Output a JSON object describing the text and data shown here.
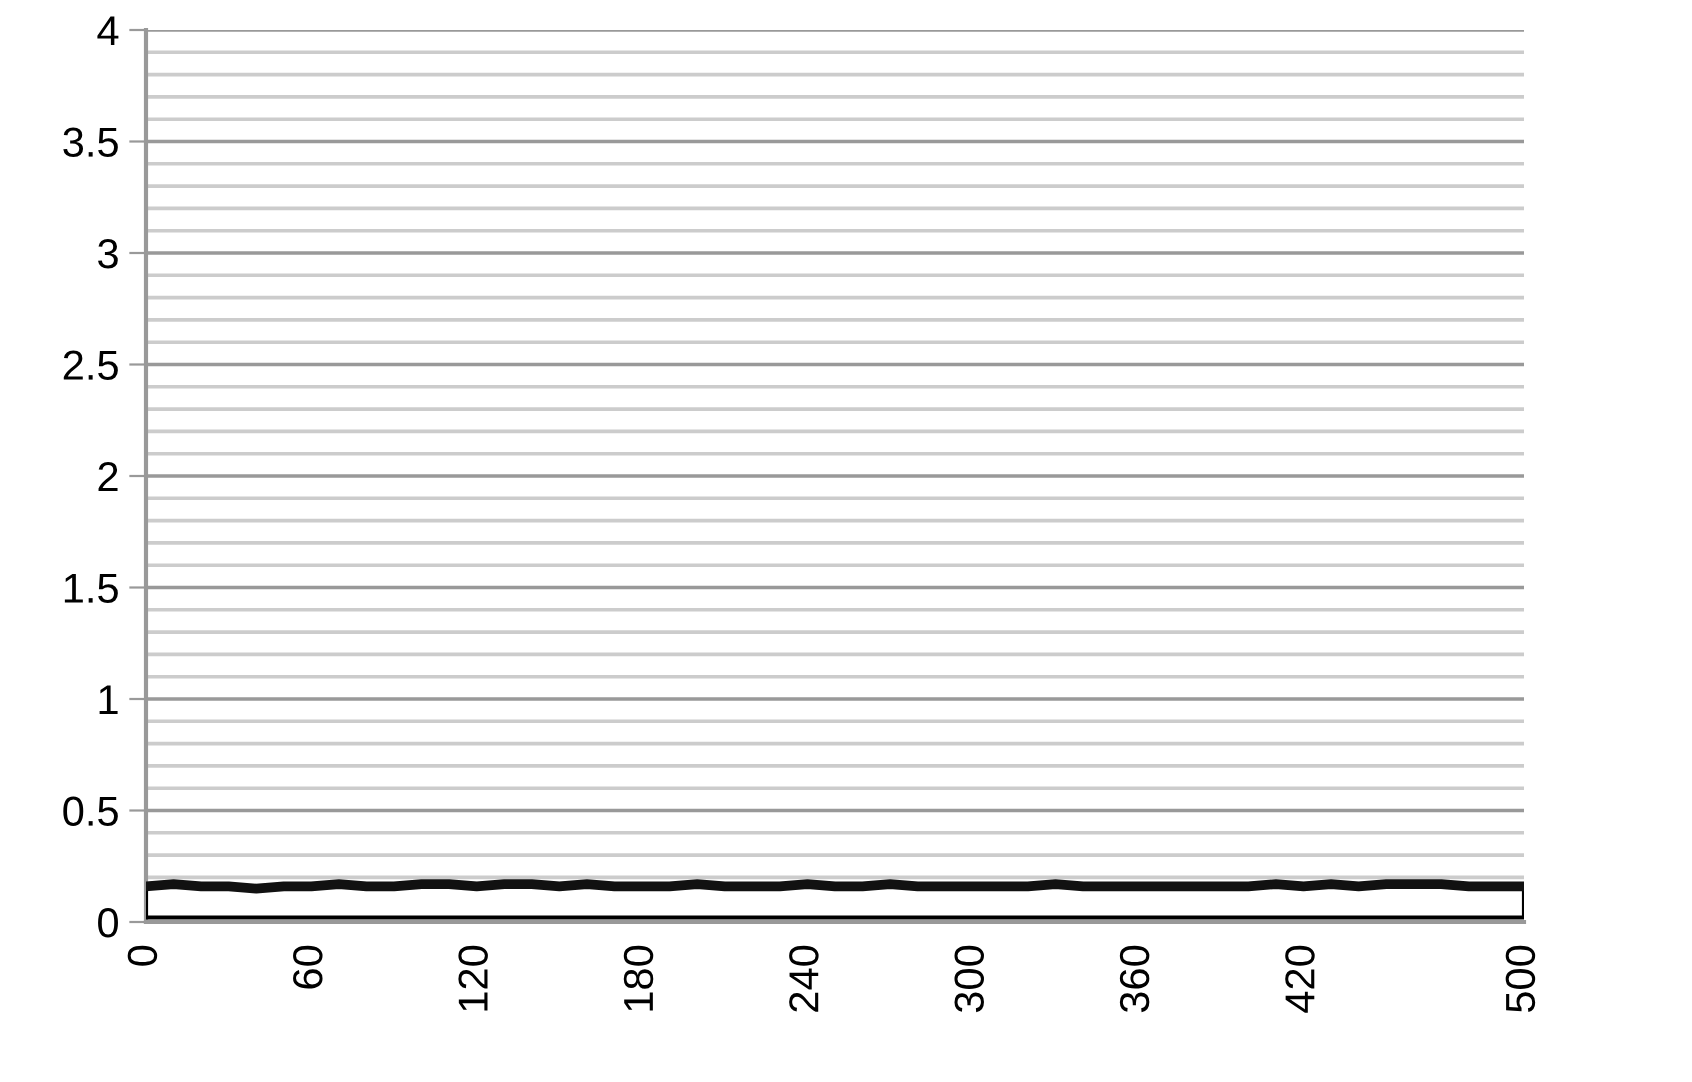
{
  "chart_data": {
    "type": "line",
    "x": [
      0,
      10,
      20,
      30,
      40,
      50,
      60,
      70,
      80,
      90,
      100,
      110,
      120,
      130,
      140,
      150,
      160,
      170,
      180,
      190,
      200,
      210,
      220,
      230,
      240,
      250,
      260,
      270,
      280,
      290,
      300,
      310,
      320,
      330,
      340,
      350,
      360,
      370,
      380,
      390,
      400,
      410,
      420,
      430,
      440,
      450,
      460,
      470,
      480,
      490,
      500
    ],
    "series": [
      {
        "color": "#111111",
        "values": [
          0.16,
          0.17,
          0.16,
          0.16,
          0.15,
          0.16,
          0.16,
          0.17,
          0.16,
          0.16,
          0.17,
          0.17,
          0.16,
          0.17,
          0.17,
          0.16,
          0.17,
          0.16,
          0.16,
          0.16,
          0.17,
          0.16,
          0.16,
          0.16,
          0.17,
          0.16,
          0.16,
          0.17,
          0.16,
          0.16,
          0.16,
          0.16,
          0.16,
          0.17,
          0.16,
          0.16,
          0.16,
          0.16,
          0.16,
          0.16,
          0.16,
          0.17,
          0.16,
          0.17,
          0.16,
          0.17,
          0.17,
          0.17,
          0.16,
          0.16,
          0.16
        ]
      }
    ],
    "bands": [
      {
        "axis": "y",
        "from": 0.02,
        "to": 0.16,
        "color": "#ffffff"
      }
    ],
    "xlim": [
      0,
      500
    ],
    "xticks": [
      0,
      60,
      120,
      180,
      240,
      300,
      360,
      420,
      500
    ],
    "ylim": [
      0,
      4
    ],
    "yticks": [
      0,
      {
        "value": 0.2,
        "label": null
      },
      {
        "value": 0.3,
        "label": null
      },
      {
        "value": 0.4,
        "label": null
      },
      0.5,
      {
        "value": 0.6,
        "label": null
      },
      {
        "value": 0.7,
        "label": null
      },
      {
        "value": 0.8,
        "label": null
      },
      {
        "value": 0.9,
        "label": null
      },
      1,
      {
        "value": 1.1,
        "label": null
      },
      {
        "value": 1.2,
        "label": null
      },
      {
        "value": 1.3,
        "label": null
      },
      {
        "value": 1.4,
        "label": null
      },
      1.5,
      {
        "value": 1.6,
        "label": null
      },
      {
        "value": 1.7,
        "label": null
      },
      {
        "value": 1.8,
        "label": null
      },
      {
        "value": 1.9,
        "label": null
      },
      2,
      {
        "value": 2.1,
        "label": null
      },
      {
        "value": 2.2,
        "label": null
      },
      {
        "value": 2.3,
        "label": null
      },
      {
        "value": 2.4,
        "label": null
      },
      2.5,
      {
        "value": 2.6,
        "label": null
      },
      {
        "value": 2.7,
        "label": null
      },
      {
        "value": 2.8,
        "label": null
      },
      {
        "value": 2.9,
        "label": null
      },
      3,
      {
        "value": 3.1,
        "label": null
      },
      {
        "value": 3.2,
        "label": null
      },
      {
        "value": 3.3,
        "label": null
      },
      {
        "value": 3.4,
        "label": null
      },
      3.5,
      {
        "value": 3.6,
        "label": null
      },
      {
        "value": 3.7,
        "label": null
      },
      {
        "value": 3.8,
        "label": null
      },
      {
        "value": 3.9,
        "label": null
      },
      4
    ],
    "grid": "y"
  }
}
